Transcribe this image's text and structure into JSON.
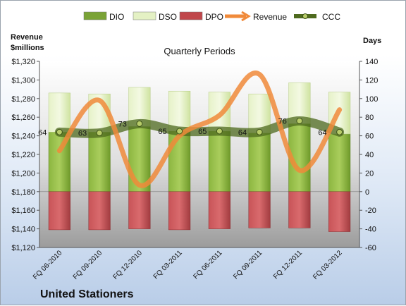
{
  "chart_data": {
    "type": "bar",
    "company": "United Stationers",
    "subtitle": "Quarterly Periods",
    "left_axis_title": "Revenue\n$millions",
    "right_axis_title": "Days",
    "left_axis": {
      "min": 1120,
      "max": 1320,
      "step": 20,
      "ticks": [
        "$1,120",
        "$1,140",
        "$1,160",
        "$1,180",
        "$1,200",
        "$1,220",
        "$1,240",
        "$1,260",
        "$1,280",
        "$1,300",
        "$1,320"
      ]
    },
    "right_axis": {
      "min": -60,
      "max": 140,
      "step": 20,
      "ticks": [
        "-60",
        "-40",
        "-20",
        "0",
        "20",
        "40",
        "60",
        "80",
        "100",
        "120",
        "140"
      ]
    },
    "categories": [
      "FQ 06-2010",
      "FQ 09-2010",
      "FQ 12-2010",
      "FQ 03-2011",
      "FQ 06-2011",
      "FQ 09-2011",
      "FQ 12-2011",
      "FQ 03-2012"
    ],
    "series": [
      {
        "name": "DIO",
        "axis": "right",
        "kind": "stacked-bar",
        "color": "#6f9a2a",
        "values": [
          64,
          64,
          70,
          65,
          65,
          63,
          73,
          62
        ]
      },
      {
        "name": "DSO",
        "axis": "right",
        "kind": "stacked-bar",
        "color": "#d9ebb0",
        "values": [
          42,
          41,
          42,
          43,
          42,
          42,
          44,
          45
        ]
      },
      {
        "name": "DPO",
        "axis": "right",
        "kind": "negative-bar",
        "color": "#b8484c",
        "values": [
          -41,
          -41,
          -40,
          -41,
          -40,
          -39,
          -39,
          -43
        ]
      },
      {
        "name": "Revenue",
        "axis": "left",
        "kind": "line",
        "color": "#f08a3a",
        "values": [
          1224,
          1278,
          1187,
          1240,
          1262,
          1306,
          1203,
          1268
        ]
      },
      {
        "name": "CCC",
        "axis": "right",
        "kind": "line",
        "color": "#4e6a1e",
        "values": [
          64,
          63,
          73,
          65,
          65,
          64,
          76,
          64
        ],
        "data_labels": [
          "64",
          "63",
          "73",
          "65",
          "65",
          "64",
          "76",
          "64"
        ]
      }
    ],
    "legend": [
      "DIO",
      "DSO",
      "DPO",
      "Revenue",
      "CCC"
    ],
    "legend_position": "top"
  }
}
